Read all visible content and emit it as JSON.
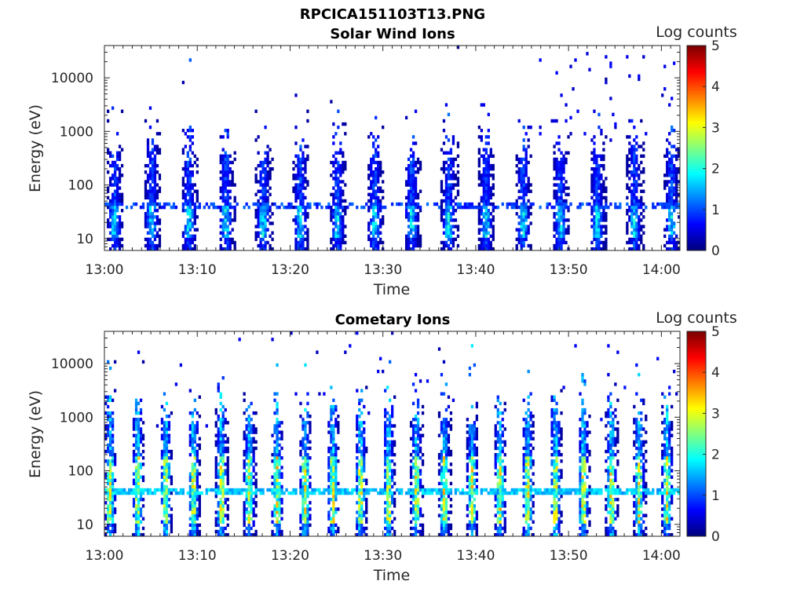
{
  "figure": {
    "filename": "RPCICA151103T13.PNG"
  },
  "chart_data": [
    {
      "type": "heatmap",
      "title": "Solar Wind Ions",
      "xlabel": "Time",
      "ylabel": "Energy (eV)",
      "x_ticks": [
        "13:00",
        "13:10",
        "13:20",
        "13:30",
        "13:40",
        "13:50",
        "14:00"
      ],
      "x_range": [
        "13:00",
        "14:02"
      ],
      "y_scale": "log",
      "y_ticks": [
        10,
        100,
        1000,
        10000
      ],
      "y_tick_labels": [
        "10",
        "100",
        "1000",
        "10000"
      ],
      "y_range": [
        6,
        40000
      ],
      "colorbar": {
        "label": "Log counts",
        "range": [
          0,
          5
        ],
        "ticks": [
          "0",
          "1",
          "2",
          "3",
          "4",
          "5"
        ],
        "colormap": "jet"
      },
      "pattern": {
        "sweep_period_minutes": 4.0,
        "sweep_start_minute": 0.3,
        "peak_log_counts": 1.9,
        "dominant_energy_eV": [
          10,
          40
        ],
        "sparse_high_energy_after_minute": 45
      }
    },
    {
      "type": "heatmap",
      "title": "Cometary Ions",
      "xlabel": "Time",
      "ylabel": "Energy (eV)",
      "x_ticks": [
        "13:00",
        "13:10",
        "13:20",
        "13:30",
        "13:40",
        "13:50",
        "14:00"
      ],
      "x_range": [
        "13:00",
        "14:02"
      ],
      "y_scale": "log",
      "y_ticks": [
        10,
        100,
        1000,
        10000
      ],
      "y_tick_labels": [
        "10",
        "100",
        "1000",
        "10000"
      ],
      "y_range": [
        6,
        40000
      ],
      "colorbar": {
        "label": "Log counts",
        "range": [
          0,
          5
        ],
        "ticks": [
          "0",
          "1",
          "2",
          "3",
          "4",
          "5"
        ],
        "colormap": "jet"
      },
      "pattern": {
        "sweep_period_minutes": 3.0,
        "sweep_start_minute": 0.0,
        "peak_log_counts": 3.2,
        "dominant_energy_eV": [
          10,
          200
        ],
        "sparse_high_energy_after_minute": 0
      }
    }
  ]
}
